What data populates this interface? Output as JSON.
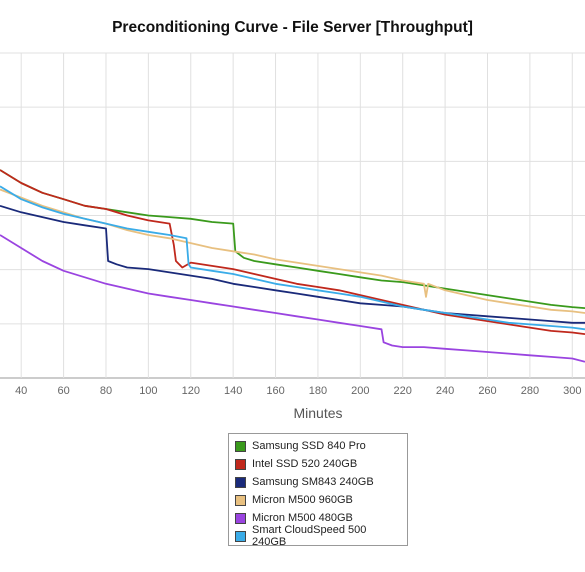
{
  "chart_data": {
    "type": "line",
    "title": "Preconditioning Curve - File Server [Throughput]",
    "xlabel": "Minutes",
    "ylabel": "",
    "xlim": [
      30,
      306
    ],
    "ylim": [
      0,
      100
    ],
    "xticks": [
      40,
      60,
      80,
      100,
      120,
      140,
      160,
      180,
      200,
      220,
      240,
      260,
      280,
      300
    ],
    "grid": true,
    "legend_position": "bottom-center",
    "series": [
      {
        "name": "Samsung SSD 840 Pro",
        "color": "#3a9a1c",
        "points": [
          [
            30,
            64
          ],
          [
            40,
            60
          ],
          [
            50,
            57
          ],
          [
            60,
            55
          ],
          [
            70,
            53
          ],
          [
            80,
            52
          ],
          [
            90,
            51
          ],
          [
            100,
            50
          ],
          [
            110,
            49.5
          ],
          [
            120,
            49
          ],
          [
            130,
            48
          ],
          [
            140,
            47.5
          ],
          [
            141,
            39
          ],
          [
            145,
            37
          ],
          [
            150,
            36
          ],
          [
            160,
            35
          ],
          [
            170,
            34
          ],
          [
            180,
            33
          ],
          [
            190,
            32
          ],
          [
            200,
            31
          ],
          [
            210,
            30
          ],
          [
            220,
            29.5
          ],
          [
            230,
            28.5
          ],
          [
            240,
            27.5
          ],
          [
            250,
            26.5
          ],
          [
            260,
            25.5
          ],
          [
            270,
            24.5
          ],
          [
            280,
            23.5
          ],
          [
            290,
            22.5
          ],
          [
            300,
            21.8
          ],
          [
            306,
            21.5
          ]
        ]
      },
      {
        "name": "Intel SSD 520 240GB",
        "color": "#c0281c",
        "points": [
          [
            30,
            64
          ],
          [
            40,
            60
          ],
          [
            50,
            57
          ],
          [
            60,
            55
          ],
          [
            70,
            53
          ],
          [
            80,
            52
          ],
          [
            90,
            50
          ],
          [
            100,
            48.5
          ],
          [
            110,
            47.5
          ],
          [
            112,
            41
          ],
          [
            113,
            36
          ],
          [
            116,
            34
          ],
          [
            120,
            35.5
          ],
          [
            130,
            34.5
          ],
          [
            140,
            33.5
          ],
          [
            150,
            32
          ],
          [
            160,
            30.5
          ],
          [
            170,
            29
          ],
          [
            180,
            28
          ],
          [
            190,
            27
          ],
          [
            200,
            25.5
          ],
          [
            210,
            24
          ],
          [
            220,
            22.5
          ],
          [
            230,
            21
          ],
          [
            240,
            19.5
          ],
          [
            250,
            18.5
          ],
          [
            260,
            17.5
          ],
          [
            270,
            16.5
          ],
          [
            280,
            15.5
          ],
          [
            290,
            14.5
          ],
          [
            300,
            14
          ],
          [
            306,
            13.5
          ]
        ]
      },
      {
        "name": "Samsung SM843 240GB",
        "color": "#1a2a7a",
        "points": [
          [
            30,
            53
          ],
          [
            40,
            51
          ],
          [
            50,
            49.5
          ],
          [
            60,
            48
          ],
          [
            70,
            47
          ],
          [
            80,
            46
          ],
          [
            81,
            36
          ],
          [
            85,
            35
          ],
          [
            90,
            34
          ],
          [
            100,
            33.5
          ],
          [
            110,
            32.5
          ],
          [
            120,
            31.5
          ],
          [
            130,
            30.5
          ],
          [
            140,
            29
          ],
          [
            150,
            28
          ],
          [
            160,
            27
          ],
          [
            170,
            26
          ],
          [
            180,
            25
          ],
          [
            190,
            24
          ],
          [
            200,
            23
          ],
          [
            210,
            22.5
          ],
          [
            220,
            22
          ],
          [
            230,
            21
          ],
          [
            240,
            20
          ],
          [
            250,
            19.5
          ],
          [
            260,
            19
          ],
          [
            270,
            18.5
          ],
          [
            280,
            18
          ],
          [
            290,
            17.5
          ],
          [
            300,
            17
          ],
          [
            306,
            17
          ]
        ]
      },
      {
        "name": "Micron M500 960GB",
        "color": "#e8c080",
        "points": [
          [
            30,
            58
          ],
          [
            40,
            55.5
          ],
          [
            50,
            53
          ],
          [
            60,
            51
          ],
          [
            70,
            49
          ],
          [
            80,
            47.5
          ],
          [
            90,
            45.5
          ],
          [
            100,
            44
          ],
          [
            110,
            43
          ],
          [
            120,
            41.5
          ],
          [
            130,
            40
          ],
          [
            140,
            39
          ],
          [
            150,
            38
          ],
          [
            160,
            36.5
          ],
          [
            170,
            35.5
          ],
          [
            180,
            34.5
          ],
          [
            190,
            33.5
          ],
          [
            200,
            32.5
          ],
          [
            210,
            31.5
          ],
          [
            220,
            30
          ],
          [
            230,
            29
          ],
          [
            231,
            25
          ],
          [
            232,
            29
          ],
          [
            240,
            27
          ],
          [
            250,
            25.5
          ],
          [
            260,
            24
          ],
          [
            270,
            23
          ],
          [
            280,
            22
          ],
          [
            290,
            21
          ],
          [
            300,
            20.5
          ],
          [
            306,
            20
          ]
        ]
      },
      {
        "name": "Micron M500 480GB",
        "color": "#9a44e0",
        "points": [
          [
            30,
            44
          ],
          [
            40,
            40
          ],
          [
            50,
            36
          ],
          [
            60,
            33
          ],
          [
            70,
            31
          ],
          [
            80,
            29
          ],
          [
            90,
            27.5
          ],
          [
            100,
            26
          ],
          [
            110,
            25
          ],
          [
            120,
            24
          ],
          [
            130,
            23
          ],
          [
            140,
            22
          ],
          [
            150,
            21
          ],
          [
            160,
            20
          ],
          [
            170,
            19
          ],
          [
            180,
            18
          ],
          [
            190,
            17
          ],
          [
            200,
            16
          ],
          [
            210,
            15
          ],
          [
            211,
            11
          ],
          [
            215,
            10
          ],
          [
            220,
            9.5
          ],
          [
            230,
            9.5
          ],
          [
            240,
            9
          ],
          [
            250,
            8.5
          ],
          [
            260,
            8
          ],
          [
            270,
            7.5
          ],
          [
            280,
            7
          ],
          [
            290,
            6.5
          ],
          [
            300,
            6
          ],
          [
            306,
            5
          ]
        ]
      },
      {
        "name": "Smart CloudSpeed 500 240GB",
        "color": "#3aace8",
        "points": [
          [
            30,
            59
          ],
          [
            40,
            55
          ],
          [
            50,
            52.5
          ],
          [
            60,
            50.5
          ],
          [
            70,
            49
          ],
          [
            80,
            47.5
          ],
          [
            90,
            46
          ],
          [
            100,
            45
          ],
          [
            110,
            44
          ],
          [
            118,
            43
          ],
          [
            119,
            35
          ],
          [
            120,
            34
          ],
          [
            130,
            33
          ],
          [
            140,
            32
          ],
          [
            150,
            30.5
          ],
          [
            160,
            29
          ],
          [
            170,
            28
          ],
          [
            180,
            27
          ],
          [
            190,
            26
          ],
          [
            200,
            25
          ],
          [
            210,
            23.5
          ],
          [
            220,
            22
          ],
          [
            230,
            21
          ],
          [
            240,
            20
          ],
          [
            250,
            19
          ],
          [
            260,
            18
          ],
          [
            270,
            17
          ],
          [
            280,
            16.5
          ],
          [
            290,
            16
          ],
          [
            300,
            15.5
          ],
          [
            306,
            15
          ]
        ]
      }
    ]
  }
}
